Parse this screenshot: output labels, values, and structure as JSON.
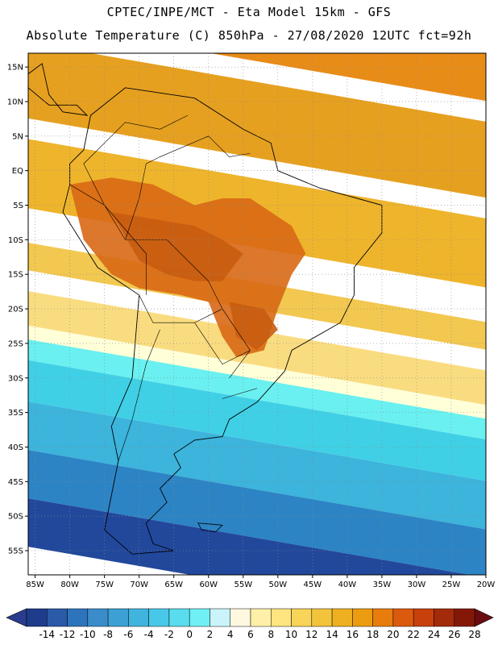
{
  "header": {
    "title": "CPTEC/INPE/MCT -  Eta Model 15km - GFS",
    "subtitle": "Absolute Temperature (C) 850hPa - 27/08/2020 12UTC fct=92h"
  },
  "map": {
    "lon_range": [
      -86,
      -20
    ],
    "lat_range": [
      -58.5,
      17
    ],
    "x_ticks": [
      {
        "lon": -85,
        "label": "85W"
      },
      {
        "lon": -80,
        "label": "80W"
      },
      {
        "lon": -75,
        "label": "75W"
      },
      {
        "lon": -70,
        "label": "70W"
      },
      {
        "lon": -65,
        "label": "65W"
      },
      {
        "lon": -60,
        "label": "60W"
      },
      {
        "lon": -55,
        "label": "55W"
      },
      {
        "lon": -50,
        "label": "50W"
      },
      {
        "lon": -45,
        "label": "45W"
      },
      {
        "lon": -40,
        "label": "40W"
      },
      {
        "lon": -35,
        "label": "35W"
      },
      {
        "lon": -30,
        "label": "30W"
      },
      {
        "lon": -25,
        "label": "25W"
      },
      {
        "lon": -20,
        "label": "20W"
      }
    ],
    "y_ticks": [
      {
        "lat": 15,
        "label": "15N"
      },
      {
        "lat": 10,
        "label": "10N"
      },
      {
        "lat": 5,
        "label": "5N"
      },
      {
        "lat": 0,
        "label": "EQ"
      },
      {
        "lat": -5,
        "label": "5S"
      },
      {
        "lat": -10,
        "label": "10S"
      },
      {
        "lat": -15,
        "label": "15S"
      },
      {
        "lat": -20,
        "label": "20S"
      },
      {
        "lat": -25,
        "label": "25S"
      },
      {
        "lat": -30,
        "label": "30S"
      },
      {
        "lat": -35,
        "label": "35S"
      },
      {
        "lat": -40,
        "label": "40S"
      },
      {
        "lat": -45,
        "label": "45S"
      },
      {
        "lat": -50,
        "label": "50S"
      },
      {
        "lat": -55,
        "label": "55S"
      }
    ],
    "grid": "dotted",
    "temperature_bands": [
      {
        "from": 28,
        "to": 17,
        "color": "#e88c18"
      },
      {
        "from": 14,
        "to": 3,
        "color": "#e6a020"
      },
      {
        "from": 0,
        "to": -10,
        "color": "#eeb42c"
      },
      {
        "from": -15,
        "to": -19,
        "color": "#f2c850"
      },
      {
        "from": -22,
        "to": -27,
        "color": "#fadc80"
      },
      {
        "from": -27,
        "to": -29,
        "color": "#ffffd8"
      },
      {
        "from": -29,
        "to": -32,
        "color": "#6af0f0"
      },
      {
        "from": -32,
        "to": -38,
        "color": "#40d0e6"
      },
      {
        "from": -38,
        "to": -45,
        "color": "#3cb4dc"
      },
      {
        "from": -45,
        "to": -52,
        "color": "#2c84c4"
      },
      {
        "from": -52,
        "to": -59,
        "color": "#22489c"
      }
    ],
    "hot_areas": [
      {
        "color": "#d86814",
        "points": [
          [
            -80,
            -2
          ],
          [
            -74,
            -1
          ],
          [
            -68,
            -2
          ],
          [
            -62,
            -5
          ],
          [
            -58,
            -4
          ],
          [
            -54,
            -4
          ],
          [
            -48,
            -8
          ],
          [
            -46,
            -12
          ],
          [
            -48,
            -15
          ],
          [
            -50,
            -20
          ],
          [
            -52,
            -26
          ],
          [
            -56,
            -27
          ],
          [
            -58,
            -24
          ],
          [
            -60,
            -19
          ],
          [
            -64,
            -18
          ],
          [
            -70,
            -17
          ],
          [
            -74,
            -15
          ],
          [
            -78,
            -10
          ]
        ]
      },
      {
        "color": "#c85c10",
        "points": [
          [
            -74,
            -6
          ],
          [
            -68,
            -7
          ],
          [
            -62,
            -8
          ],
          [
            -58,
            -10
          ],
          [
            -55,
            -12
          ],
          [
            -58,
            -16
          ],
          [
            -62,
            -16
          ],
          [
            -66,
            -15
          ],
          [
            -70,
            -13
          ]
        ]
      },
      {
        "color": "#c85c10",
        "points": [
          [
            -57,
            -19
          ],
          [
            -52,
            -20
          ],
          [
            -50,
            -23
          ],
          [
            -53,
            -26
          ],
          [
            -56,
            -24
          ]
        ]
      }
    ]
  },
  "colorbar": {
    "values": [
      -14,
      -12,
      -10,
      -8,
      -6,
      -4,
      -2,
      0,
      2,
      4,
      6,
      8,
      10,
      12,
      14,
      16,
      18,
      20,
      22,
      24,
      26,
      28
    ],
    "labels": [
      "-14",
      "-12",
      "-10",
      "-8",
      "-6",
      "-4",
      "-2",
      "0",
      "2",
      "4",
      "6",
      "8",
      "10",
      "12",
      "14",
      "16",
      "18",
      "20",
      "22",
      "24",
      "26",
      "28"
    ],
    "under_color": "#2a3c8c",
    "over_color": "#6a0c10",
    "colors": [
      "#1e3c8c",
      "#2a5aa8",
      "#2e74bc",
      "#3a8cca",
      "#3ca0d4",
      "#40b4de",
      "#48c8e8",
      "#58dcee",
      "#70f0f4",
      "#caf4fa",
      "#fff8e0",
      "#fff0a8",
      "#ffe480",
      "#f8d458",
      "#f2c43c",
      "#eeb020",
      "#ec9c10",
      "#e87c0c",
      "#dc5a0c",
      "#c8400c",
      "#a42a0c",
      "#841808"
    ]
  }
}
